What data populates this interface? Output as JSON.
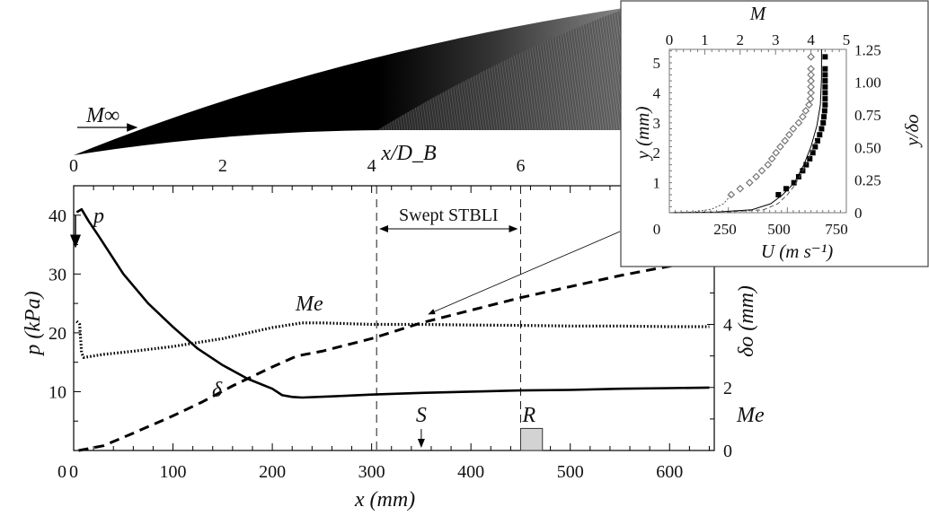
{
  "chart_data": [
    {
      "type": "line",
      "title": "",
      "xlabel": "x (mm)",
      "top_xlabel": "x/D_B",
      "ylabel": "p (kPa)",
      "ylabel_right": "δo (mm)",
      "ylabel_right2": "Me",
      "xlim": [
        0,
        645
      ],
      "ylim": [
        0,
        45
      ],
      "ylim_right": [
        0,
        8.4
      ],
      "x_ticks": [
        "0",
        "100",
        "200",
        "300",
        "400",
        "500",
        "600"
      ],
      "top_x_ticks": [
        "0",
        "2",
        "4",
        "6"
      ],
      "y_ticks": [
        "10",
        "20",
        "30",
        "40"
      ],
      "y_ticks_zero": "0",
      "y_right_ticks": [
        "0",
        "2",
        "4"
      ],
      "series": [
        {
          "name": "p",
          "axis": "left",
          "style": "solid",
          "x": [
            3,
            8,
            15,
            25,
            50,
            75,
            100,
            125,
            150,
            175,
            200,
            210,
            220,
            230,
            260,
            300,
            350,
            400,
            450,
            500,
            550,
            600,
            640
          ],
          "y": [
            40.5,
            41,
            39,
            36.5,
            30,
            25,
            21,
            17.3,
            14.5,
            12.2,
            10.5,
            9.4,
            9.1,
            9.0,
            9.2,
            9.5,
            9.8,
            10.0,
            10.2,
            10.3,
            10.5,
            10.6,
            10.7
          ]
        },
        {
          "name": "Me",
          "axis": "right",
          "style": "dotted",
          "x": [
            3,
            6,
            8,
            10,
            30,
            60,
            100,
            150,
            200,
            230,
            250,
            300,
            350,
            400,
            450,
            500,
            550,
            600,
            640
          ],
          "y": [
            4.1,
            4.0,
            3.1,
            2.95,
            3.05,
            3.15,
            3.3,
            3.55,
            3.9,
            4.05,
            4.05,
            4.0,
            4.0,
            3.98,
            3.97,
            3.95,
            3.95,
            3.93,
            3.93
          ]
        },
        {
          "name": "δ",
          "axis": "right",
          "style": "dashed",
          "x": [
            5,
            30,
            60,
            100,
            130,
            160,
            200,
            225,
            250,
            300,
            350,
            400,
            450,
            500,
            550,
            600,
            640
          ],
          "y": [
            0.0,
            0.15,
            0.55,
            1.1,
            1.55,
            2.05,
            2.65,
            3.0,
            3.15,
            3.55,
            4.05,
            4.45,
            4.85,
            5.2,
            5.55,
            5.85,
            6.1
          ]
        }
      ],
      "annotations": {
        "p_label": "p",
        "me_label": "Me",
        "delta_label": "δ",
        "region_label": "Swept STBLI",
        "region_x": [
          305,
          450
        ],
        "s_label": "S",
        "s_x": 350,
        "r_label": "R",
        "r_box_x": [
          450,
          472
        ],
        "r_box_height": 0.7,
        "freestream_label": "M∞"
      }
    },
    {
      "type": "scatter",
      "xlabel": "U (m s⁻¹)",
      "top_xlabel": "M",
      "ylabel": "y (mm)",
      "ylabel_right": "y/δo",
      "xlim": [
        0,
        750
      ],
      "top_xlim": [
        0,
        5
      ],
      "ylim": [
        0,
        5.45
      ],
      "x_ticks": [
        "0",
        "250",
        "500",
        "750"
      ],
      "top_x_ticks": [
        "0",
        "1",
        "2",
        "3",
        "4",
        "5"
      ],
      "y_ticks": [
        "1",
        "2",
        "3",
        "4",
        "5"
      ],
      "y_right_ticks": [
        "0",
        "0.25",
        "0.50",
        "0.75",
        "1.00",
        "1.25"
      ],
      "series": [
        {
          "name": "open-diamonds",
          "marker": "diamond-open",
          "x": [
            262,
            300,
            340,
            368,
            392,
            418,
            435,
            452,
            470,
            490,
            508,
            525,
            548,
            565,
            578,
            592,
            598,
            600,
            600,
            600,
            600,
            600,
            600
          ],
          "y": [
            0.6,
            0.8,
            1.0,
            1.2,
            1.4,
            1.6,
            1.8,
            2.0,
            2.2,
            2.4,
            2.6,
            2.8,
            3.0,
            3.2,
            3.4,
            3.6,
            3.8,
            4.0,
            4.2,
            4.4,
            4.6,
            4.8,
            5.2
          ]
        },
        {
          "name": "filled-squares",
          "marker": "square-filled",
          "x": [
            462,
            495,
            528,
            548,
            565,
            580,
            595,
            608,
            618,
            628,
            637,
            645,
            652,
            655,
            658,
            660,
            660,
            660,
            660,
            660,
            660,
            660,
            660
          ],
          "y": [
            0.6,
            0.8,
            1.0,
            1.2,
            1.4,
            1.6,
            1.8,
            2.0,
            2.2,
            2.4,
            2.6,
            2.8,
            3.0,
            3.2,
            3.4,
            3.6,
            3.8,
            4.0,
            4.2,
            4.4,
            4.6,
            4.8,
            5.2
          ]
        },
        {
          "name": "solid-line",
          "style": "solid",
          "x": [
            0,
            200,
            350,
            430,
            480,
            530,
            570,
            600,
            625,
            640,
            645,
            645
          ],
          "y": [
            0,
            0.02,
            0.1,
            0.3,
            0.6,
            1.0,
            1.6,
            2.2,
            2.9,
            3.6,
            4.5,
            5.45
          ]
        },
        {
          "name": "dashed-line",
          "style": "dashed",
          "x": [
            0,
            250,
            400,
            460,
            500,
            530,
            560,
            590,
            620
          ],
          "y": [
            0,
            0.02,
            0.1,
            0.3,
            0.6,
            0.9,
            1.3,
            1.8,
            2.4
          ]
        },
        {
          "name": "dotted-line",
          "style": "dotted",
          "x": [
            0,
            100,
            180,
            230,
            262
          ],
          "y": [
            0,
            0.02,
            0.12,
            0.3,
            0.6
          ]
        }
      ]
    }
  ]
}
